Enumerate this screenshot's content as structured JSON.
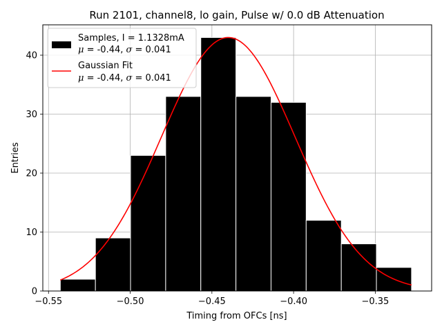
{
  "chart_data": {
    "type": "bar",
    "title": "Run 2101, channel8, lo gain, Pulse w/ 0.0 dB Attenuation",
    "xlabel": "Timing from OFCs [ns]",
    "ylabel": "Entries",
    "xlim": [
      -0.5535,
      -0.3155
    ],
    "ylim": [
      0,
      45.15
    ],
    "xticks": [
      -0.55,
      -0.5,
      -0.45,
      -0.4,
      -0.35
    ],
    "xtick_labels": [
      "−0.55",
      "−0.50",
      "−0.45",
      "−0.40",
      "−0.35"
    ],
    "yticks": [
      0,
      10,
      20,
      30,
      40
    ],
    "ytick_labels": [
      "0",
      "10",
      "20",
      "30",
      "40"
    ],
    "grid": true,
    "legend_position": "top-left",
    "bin_edges": [
      -0.5428,
      -0.5213,
      -0.4998,
      -0.4783,
      -0.4568,
      -0.4353,
      -0.4138,
      -0.3923,
      -0.3708,
      -0.3493,
      -0.3278
    ],
    "values": [
      2,
      9,
      23,
      33,
      43,
      33,
      32,
      12,
      8,
      4
    ],
    "fit": {
      "type": "gaussian",
      "amplitude": 43.0,
      "mu": -0.44,
      "sigma": 0.041,
      "x_range": [
        -0.5428,
        -0.3278
      ]
    },
    "series": [
      {
        "name": "Samples",
        "color": "#000000",
        "label_line1": "Samples, I = 1.1328mA",
        "label_line2_mu": "μ",
        "label_line2_rest1": " = -0.44, ",
        "label_line2_sigma": "σ",
        "label_line2_rest2": " = 0.041"
      },
      {
        "name": "Gaussian Fit",
        "color": "#ff0000",
        "label_line1": "Gaussian Fit",
        "label_line2_mu": "μ",
        "label_line2_rest1": " = -0.44, ",
        "label_line2_sigma": "σ",
        "label_line2_rest2": " = 0.041"
      }
    ]
  }
}
